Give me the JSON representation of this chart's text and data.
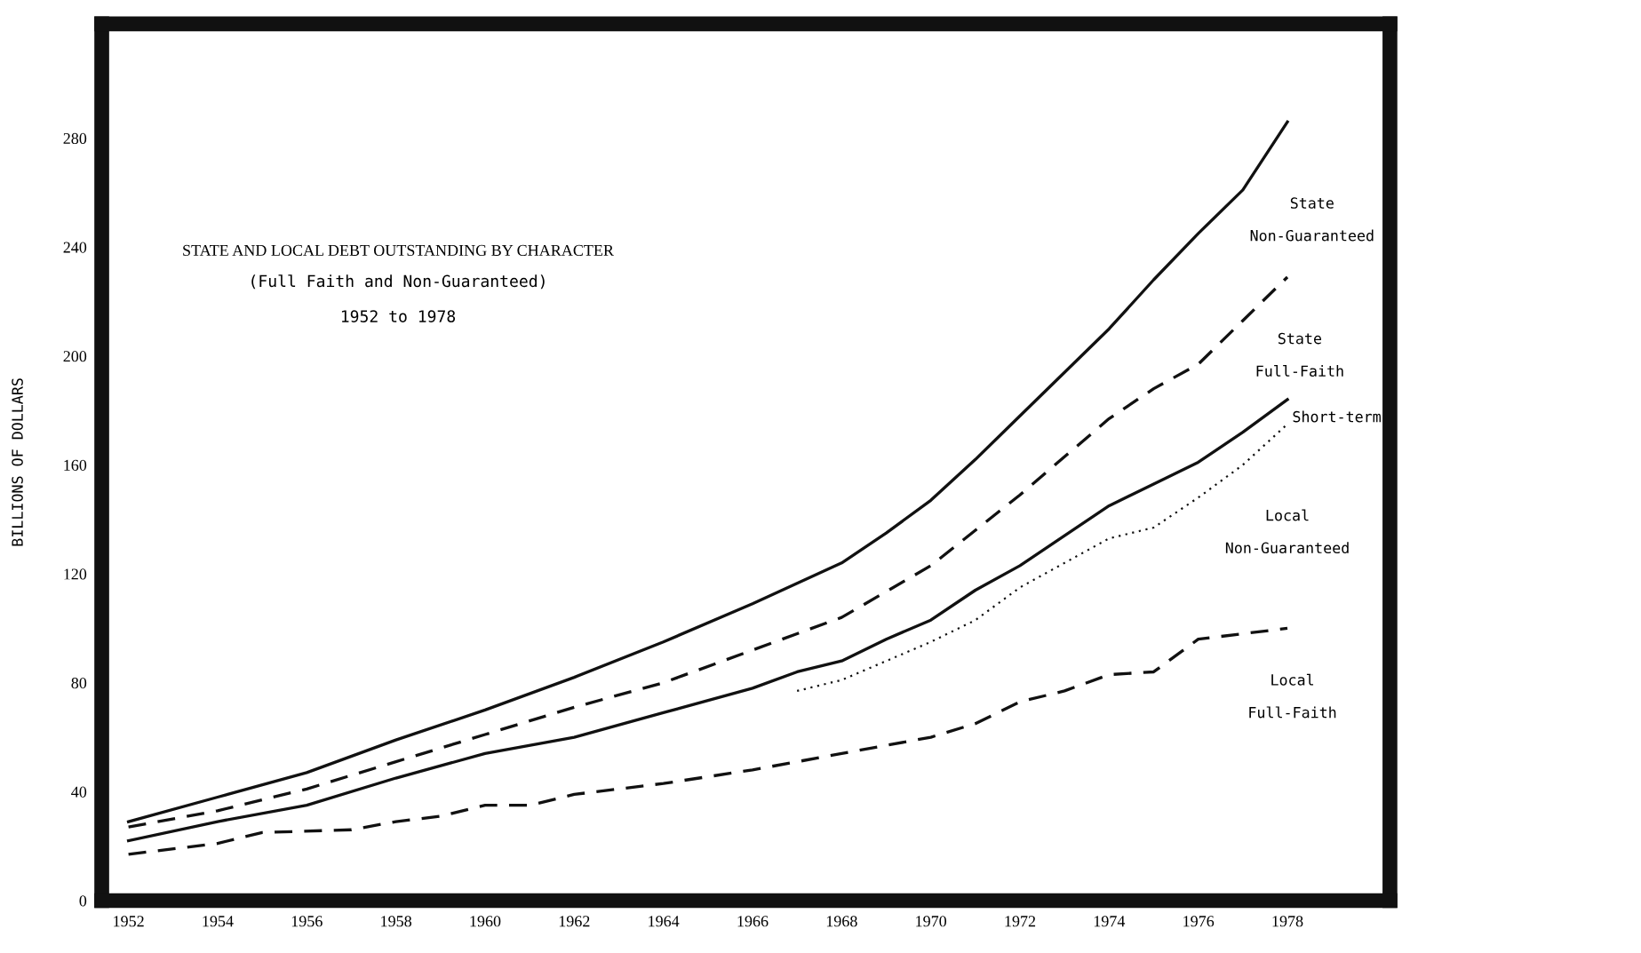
{
  "chart_data": {
    "type": "line",
    "title": "STATE AND LOCAL DEBT OUTSTANDING BY CHARACTER",
    "subtitle": "(Full Faith and Non-Guaranteed)\n1952 to 1978",
    "ylabel": "BILLIONS OF DOLLARS",
    "xlim": [
      1951.4,
      1980.3
    ],
    "ylim": [
      0,
      322
    ],
    "xticks": [
      1952,
      1954,
      1956,
      1958,
      1960,
      1962,
      1964,
      1966,
      1968,
      1970,
      1972,
      1974,
      1976,
      1978
    ],
    "yticks": [
      0,
      40,
      80,
      120,
      160,
      200,
      240,
      280
    ],
    "grid": false,
    "legend": false,
    "marker": "none",
    "series": [
      {
        "name": "State\nNon-Guaranteed",
        "color": "#111111",
        "line_style": "solid",
        "x": [
          1952,
          1954,
          1956,
          1958,
          1960,
          1962,
          1964,
          1966,
          1968,
          1969,
          1970,
          1971,
          1972,
          1973,
          1974,
          1975,
          1976,
          1977,
          1978
        ],
        "values": [
          29,
          38,
          47,
          59,
          70,
          82,
          95,
          109,
          124,
          135,
          147,
          162,
          178,
          194,
          210,
          228,
          245,
          261,
          286
        ]
      },
      {
        "name": "State\nFull-Faith",
        "color": "#111111",
        "line_style": "dashed",
        "x": [
          1952,
          1954,
          1956,
          1958,
          1960,
          1962,
          1964,
          1966,
          1968,
          1970,
          1972,
          1974,
          1975,
          1976,
          1977,
          1978
        ],
        "values": [
          27,
          33,
          41,
          51,
          61,
          71,
          80,
          92,
          104,
          123,
          149,
          177,
          188,
          197,
          213,
          229
        ]
      },
      {
        "name": "Short-term",
        "color": "#111111",
        "line_style": "dotted",
        "x": [
          1967,
          1968,
          1970,
          1971,
          1972,
          1974,
          1975,
          1976,
          1977,
          1978
        ],
        "values": [
          77,
          81,
          95,
          103,
          115,
          133,
          137,
          148,
          160,
          175
        ]
      },
      {
        "name": "Local\nNon-Guaranteed",
        "color": "#111111",
        "line_style": "solid",
        "x": [
          1952,
          1954,
          1956,
          1958,
          1960,
          1962,
          1964,
          1966,
          1967,
          1968,
          1969,
          1970,
          1971,
          1972,
          1973,
          1974,
          1975,
          1976,
          1977,
          1978
        ],
        "values": [
          22,
          29,
          35,
          45,
          54,
          60,
          69,
          78,
          84,
          88,
          96,
          103,
          114,
          123,
          134,
          145,
          153,
          161,
          172,
          184
        ]
      },
      {
        "name": "Local\nFull-Faith",
        "color": "#111111",
        "line_style": "dashed",
        "x": [
          1952,
          1954,
          1955,
          1957,
          1958,
          1959,
          1960,
          1961,
          1962,
          1964,
          1966,
          1968,
          1969,
          1970,
          1971,
          1972,
          1973,
          1974,
          1975,
          1976,
          1978
        ],
        "values": [
          17,
          21,
          25,
          26,
          29,
          31,
          35,
          35,
          39,
          43,
          48,
          54,
          57,
          60,
          65,
          73,
          77,
          83,
          84,
          96,
          100
        ]
      }
    ]
  }
}
